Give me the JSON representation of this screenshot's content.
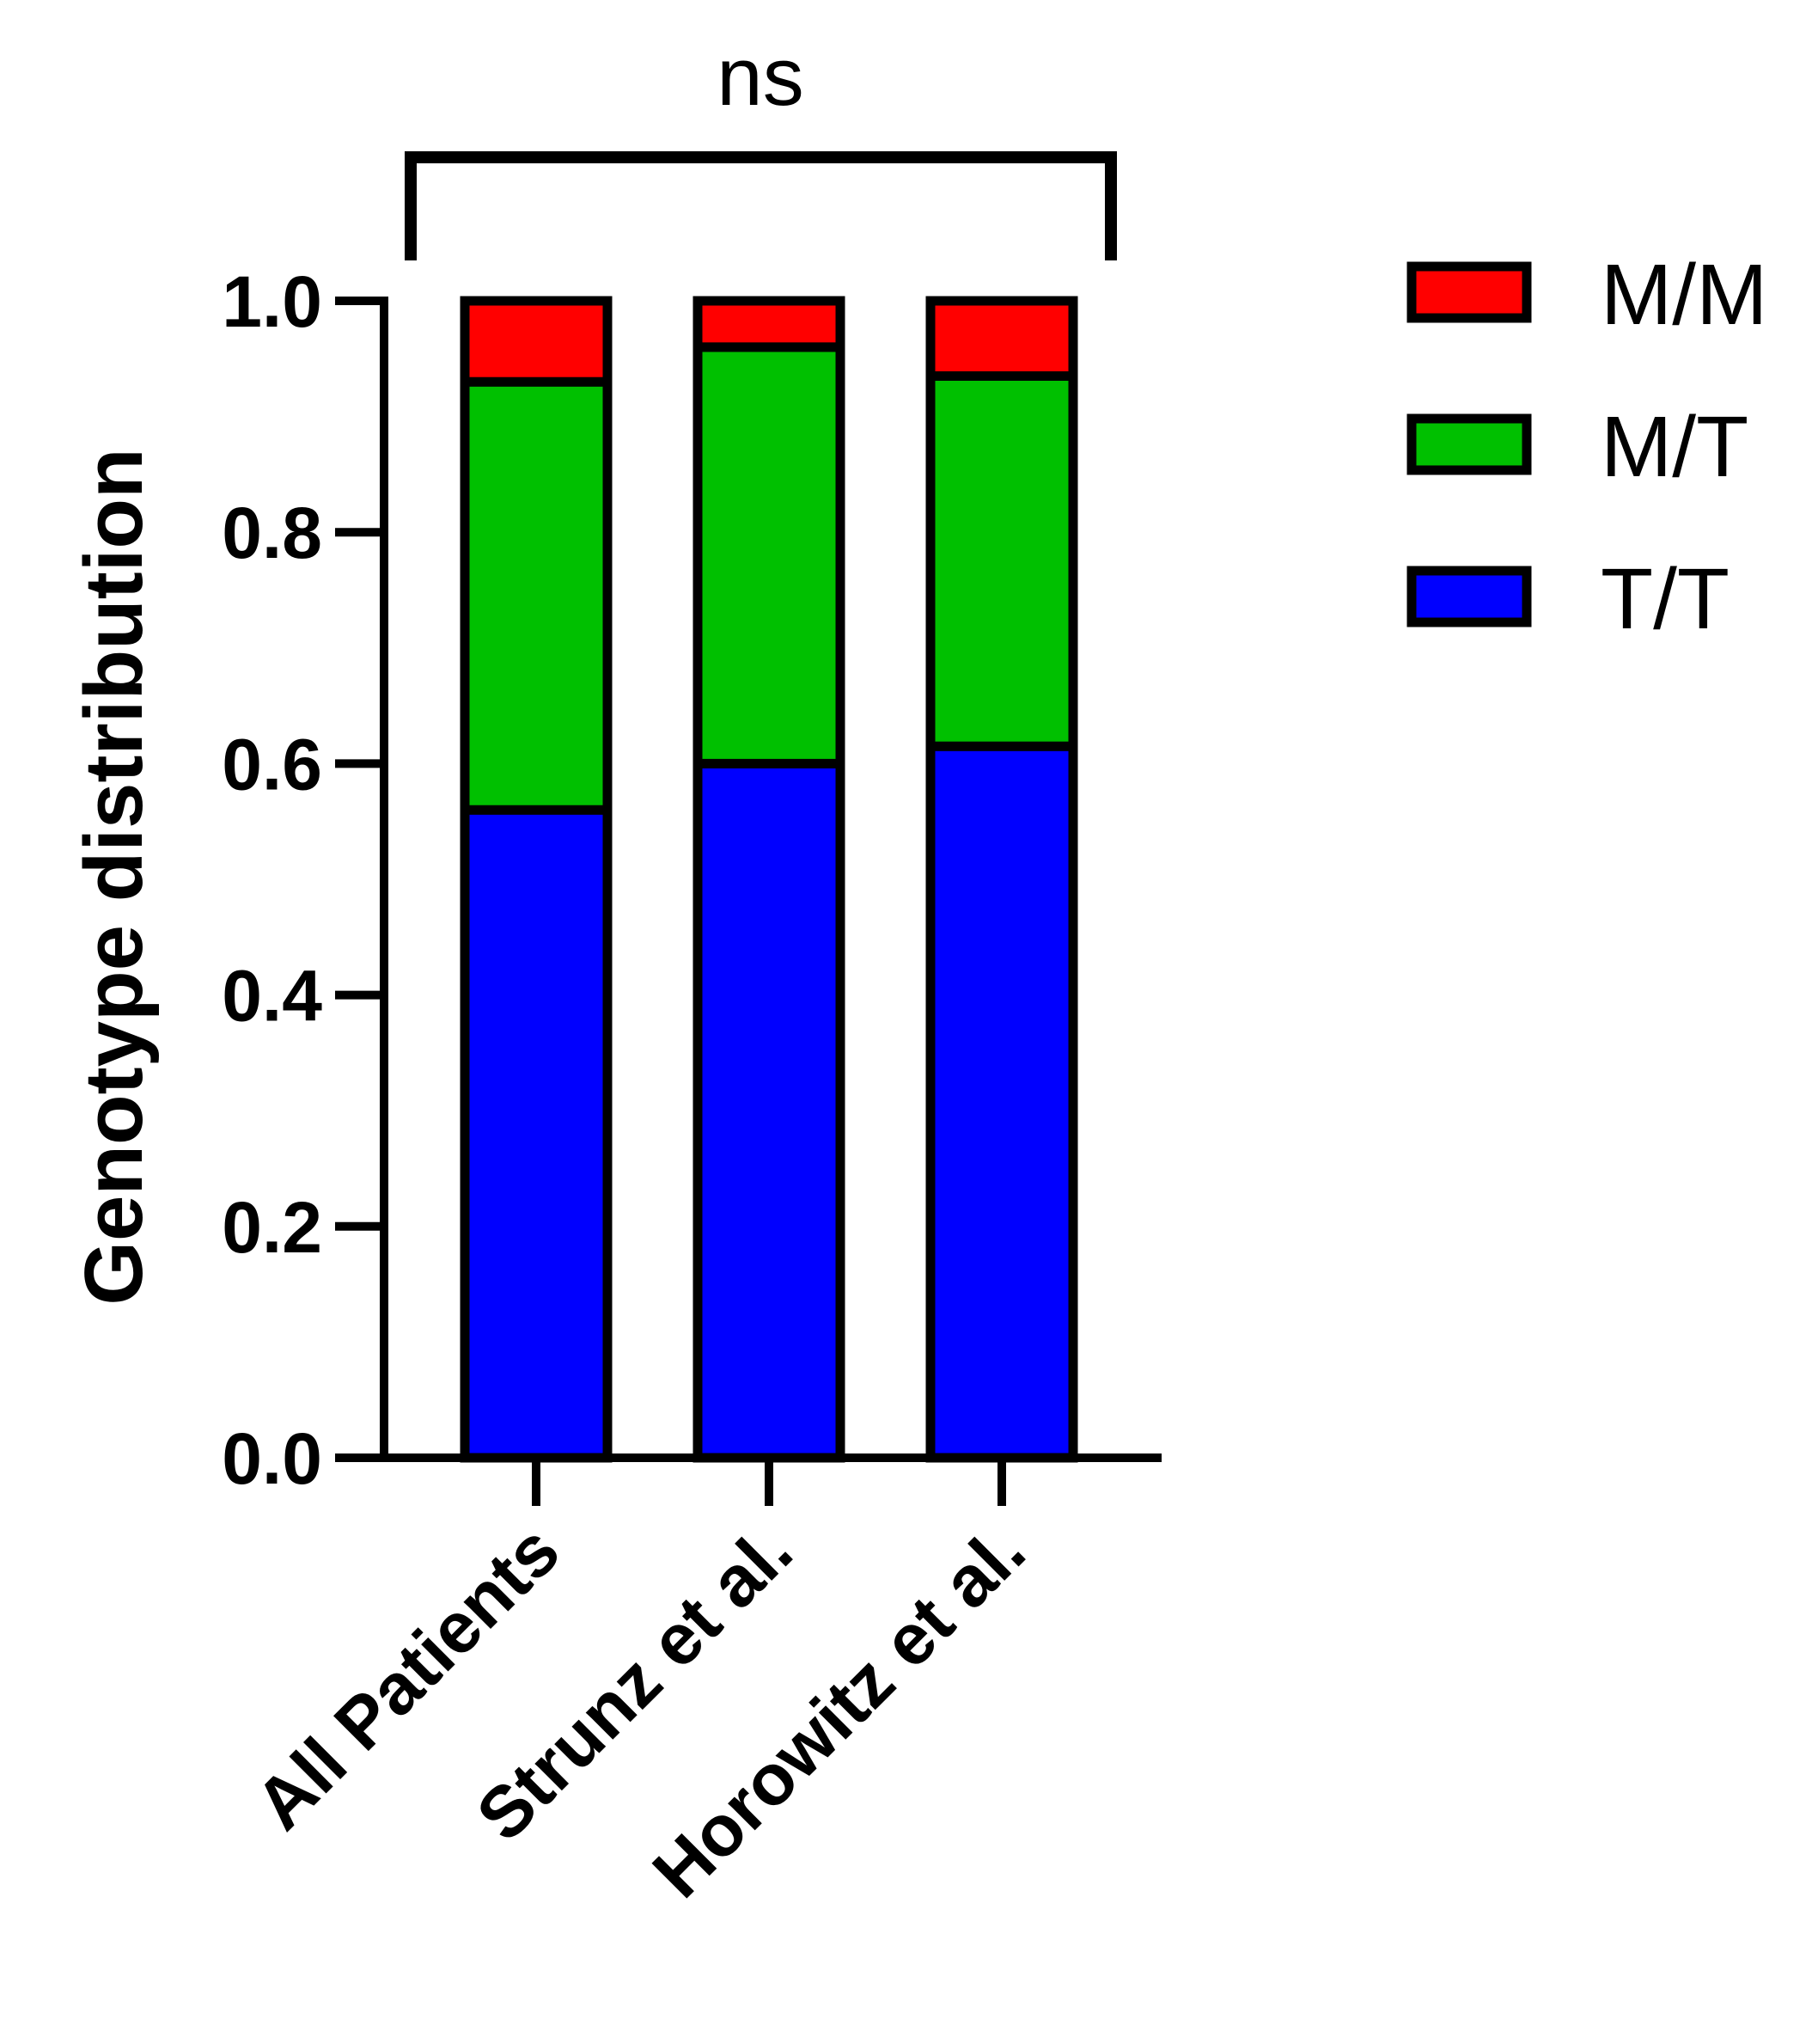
{
  "chart_data": {
    "type": "bar",
    "stacked": true,
    "categories": [
      "All Patients",
      "Strunz et al.",
      "Horowitz et al."
    ],
    "series": [
      {
        "name": "T/T",
        "color": "#0000ff",
        "values": [
          0.56,
          0.6,
          0.615
        ]
      },
      {
        "name": "M/T",
        "color": "#00c000",
        "values": [
          0.37,
          0.36,
          0.32
        ]
      },
      {
        "name": "M/M",
        "color": "#ff0000",
        "values": [
          0.07,
          0.04,
          0.065
        ]
      }
    ],
    "legend_order": [
      "M/M",
      "M/T",
      "T/T"
    ],
    "legend_position": "top-right",
    "ylabel": "Genotype distribution",
    "ylim": [
      0,
      1.0
    ],
    "yticks": [
      "0.0",
      "0.2",
      "0.4",
      "0.6",
      "0.8",
      "1.0"
    ],
    "significance": {
      "label": "ns",
      "from": "All Patients",
      "to": "Horowitz et al."
    },
    "grid": false
  }
}
